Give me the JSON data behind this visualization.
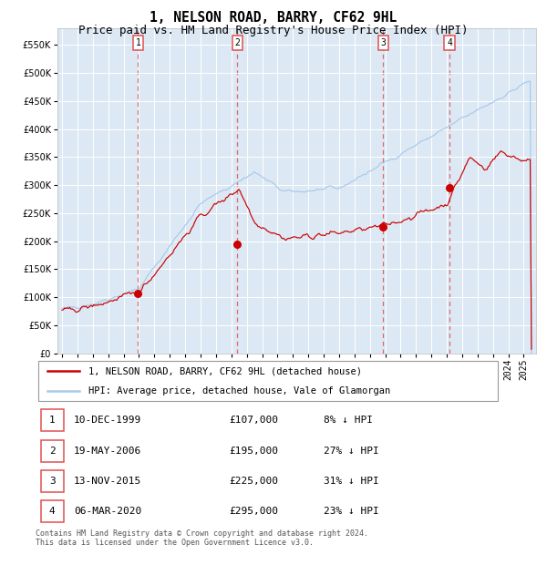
{
  "title": "1, NELSON ROAD, BARRY, CF62 9HL",
  "subtitle": "Price paid vs. HM Land Registry's House Price Index (HPI)",
  "ylim": [
    0,
    580000
  ],
  "yticks": [
    0,
    50000,
    100000,
    150000,
    200000,
    250000,
    300000,
    350000,
    400000,
    450000,
    500000,
    550000
  ],
  "xlim_start": 1994.7,
  "xlim_end": 2025.8,
  "bg_color": "#dce9f5",
  "grid_color": "#ffffff",
  "purchases": [
    {
      "date_dec": 1999.94,
      "price": 107000,
      "label": "1"
    },
    {
      "date_dec": 2006.38,
      "price": 195000,
      "label": "2"
    },
    {
      "date_dec": 2015.87,
      "price": 225000,
      "label": "3"
    },
    {
      "date_dec": 2020.17,
      "price": 295000,
      "label": "4"
    }
  ],
  "purchase_color": "#cc0000",
  "hpi_color": "#aac8e8",
  "vline_color": "#e05050",
  "legend_items": [
    {
      "label": "1, NELSON ROAD, BARRY, CF62 9HL (detached house)",
      "color": "#cc0000"
    },
    {
      "label": "HPI: Average price, detached house, Vale of Glamorgan",
      "color": "#aac8e8"
    }
  ],
  "table_rows": [
    {
      "num": "1",
      "date": "10-DEC-1999",
      "price": "£107,000",
      "hpi": "8% ↓ HPI"
    },
    {
      "num": "2",
      "date": "19-MAY-2006",
      "price": "£195,000",
      "hpi": "27% ↓ HPI"
    },
    {
      "num": "3",
      "date": "13-NOV-2015",
      "price": "£225,000",
      "hpi": "31% ↓ HPI"
    },
    {
      "num": "4",
      "date": "06-MAR-2020",
      "price": "£295,000",
      "hpi": "23% ↓ HPI"
    }
  ],
  "footnote": "Contains HM Land Registry data © Crown copyright and database right 2024.\nThis data is licensed under the Open Government Licence v3.0.",
  "title_fontsize": 10.5,
  "subtitle_fontsize": 9,
  "tick_fontsize": 7,
  "legend_fontsize": 7.5,
  "table_fontsize": 8,
  "footnote_fontsize": 6
}
